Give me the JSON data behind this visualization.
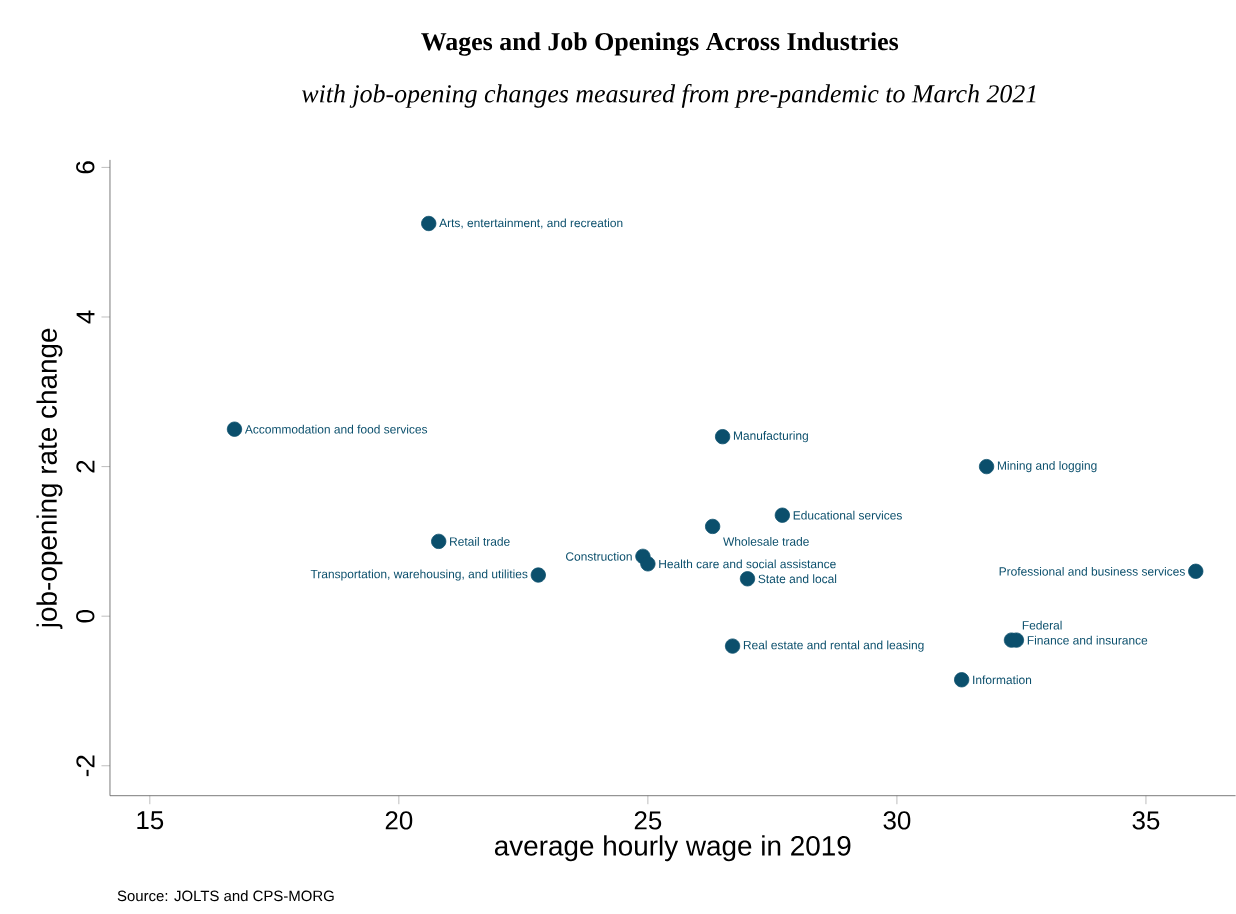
{
  "chart_data": {
    "type": "scatter",
    "title": "Wages and Job Openings Across Industries",
    "subtitle": "with job-opening changes measured from pre-pandemic to March 2021",
    "xlabel": "average hourly wage in 2019",
    "ylabel": "job-opening rate change",
    "x": [
      20.6,
      16.7,
      26.5,
      31.8,
      27.7,
      26.3,
      20.8,
      24.9,
      25.0,
      22.8,
      27.0,
      36.0,
      26.7,
      32.3,
      32.4,
      31.3
    ],
    "series": [
      {
        "color": "#0b4f6c",
        "values": [
          5.25,
          2.5,
          2.4,
          2.0,
          1.35,
          1.2,
          1.0,
          0.8,
          0.7,
          0.55,
          0.5,
          0.6,
          -0.4,
          -0.32,
          -0.32,
          -0.85
        ]
      }
    ],
    "annotations": [
      {
        "text": "Arts, entertainment, and recreation",
        "x": 20.6,
        "y": 5.25
      },
      {
        "text": "Accommodation and food services",
        "x": 16.7,
        "y": 2.5
      },
      {
        "text": "Manufacturing",
        "x": 26.5,
        "y": 2.4
      },
      {
        "text": "Mining and logging",
        "x": 31.8,
        "y": 2.0
      },
      {
        "text": "Educational services",
        "x": 27.7,
        "y": 1.35
      },
      {
        "text": "Wholesale trade",
        "x": 26.3,
        "y": 1.2
      },
      {
        "text": "Retail trade",
        "x": 20.8,
        "y": 1.0
      },
      {
        "text": "Construction",
        "x": 24.9,
        "y": 0.8
      },
      {
        "text": "Health care and social assistance",
        "x": 25.0,
        "y": 0.7
      },
      {
        "text": "Transportation, warehousing, and utilities",
        "x": 22.8,
        "y": 0.55
      },
      {
        "text": "State and local",
        "x": 27.0,
        "y": 0.5
      },
      {
        "text": "Professional and business services",
        "x": 36.0,
        "y": 0.6
      },
      {
        "text": "Real estate and rental and leasing",
        "x": 26.7,
        "y": -0.4
      },
      {
        "text": "Federal",
        "x": 32.3,
        "y": -0.32
      },
      {
        "text": "Finance and insurance",
        "x": 32.4,
        "y": -0.32
      },
      {
        "text": "Information",
        "x": 31.3,
        "y": -0.85
      },
      "Source: JOLTS and CPS-MORG"
    ],
    "xlim": [
      14.2,
      36.8
    ],
    "ylim": [
      -2.4,
      6.1
    ],
    "xticks": [
      15,
      20,
      25,
      30,
      35
    ],
    "yticks": [
      -2,
      0,
      2,
      4,
      6
    ],
    "marker": "circle"
  }
}
